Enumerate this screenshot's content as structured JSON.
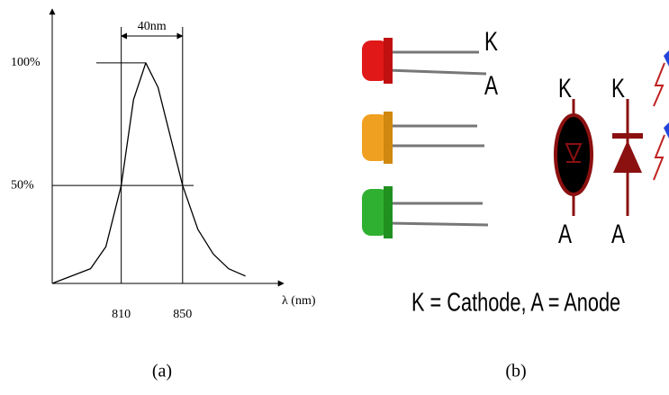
{
  "chart_data": {
    "type": "line",
    "x_label": "λ (nm)",
    "width_annotation": "40nm",
    "xlim": [
      765,
      910
    ],
    "xticks": [
      810,
      850
    ],
    "ylim": [
      10,
      122
    ],
    "yticks": [
      {
        "value": 100,
        "label": "100%"
      },
      {
        "value": 50,
        "label": "50%"
      }
    ],
    "series": [
      {
        "color": "#000000",
        "x": [
          765,
          790,
          800,
          810,
          818,
          826,
          834,
          842,
          850,
          860,
          870,
          880,
          891
        ],
        "values": [
          10,
          16,
          25,
          50,
          85,
          100,
          90,
          70,
          50,
          32,
          22,
          16,
          13
        ]
      }
    ]
  },
  "panel_b": {
    "led_labels": [
      "K",
      "A"
    ],
    "symbol_labels": [
      [
        "K",
        "A"
      ],
      [
        "K",
        "A"
      ]
    ],
    "legend": "K = Cathode, A = Anode"
  },
  "captions": [
    "(a)",
    "(b)"
  ]
}
